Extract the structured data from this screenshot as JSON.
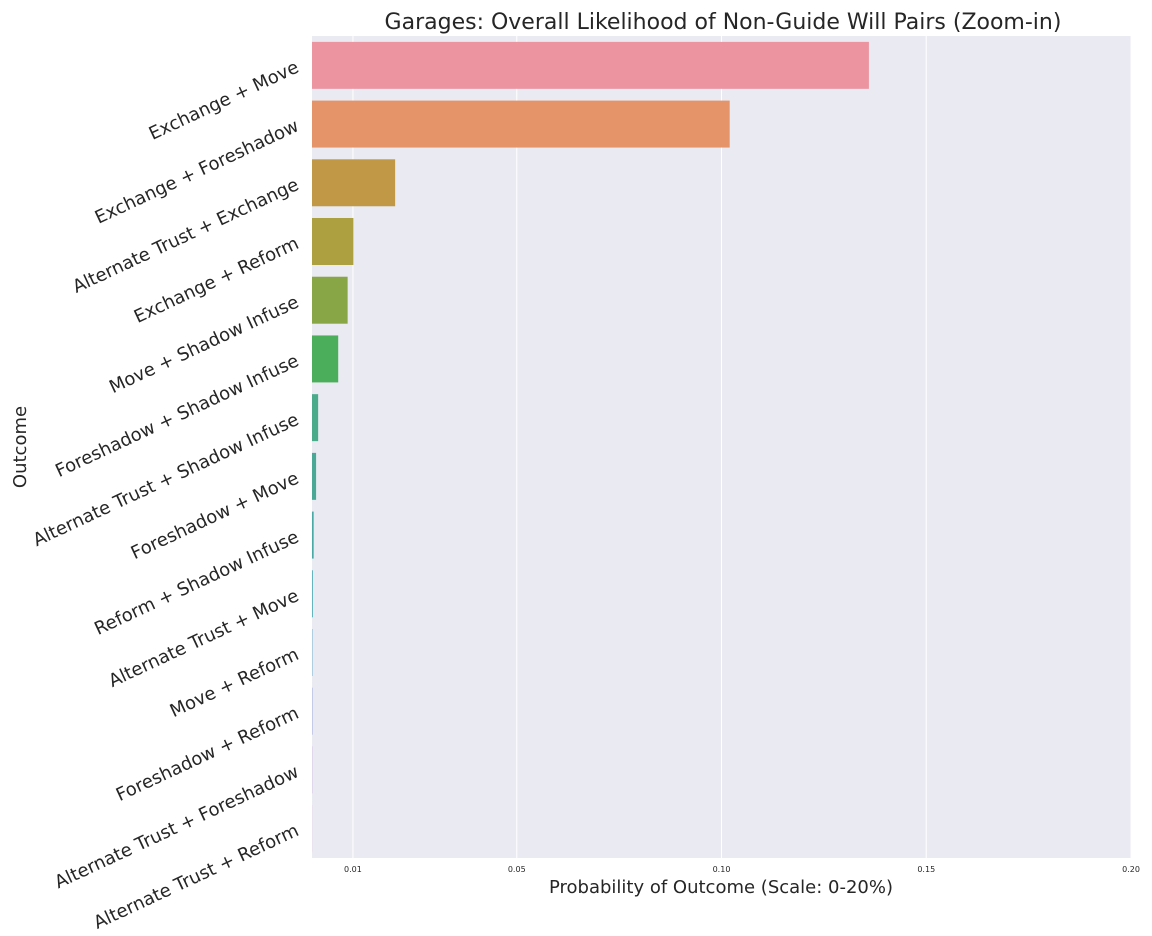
{
  "chart_data": {
    "type": "bar",
    "orientation": "horizontal",
    "title": "Garages: Overall Likelihood of Non-Guide Will Pairs (Zoom-in)",
    "xlabel": "Probability of Outcome (Scale: 0-20%)",
    "ylabel": "Outcome",
    "xlim": [
      0,
      0.2
    ],
    "xticks": [
      0.01,
      0.05,
      0.1,
      0.15,
      0.2
    ],
    "xtick_labels": [
      "0.01",
      "0.05",
      "0.10",
      "0.15",
      "0.20"
    ],
    "grid": true,
    "categories": [
      "Exchange + Move",
      "Exchange + Foreshadow",
      "Alternate Trust + Exchange",
      "Exchange + Reform",
      "Move + Shadow Infuse",
      "Foreshadow + Shadow Infuse",
      "Alternate Trust + Shadow Infuse",
      "Foreshadow + Move",
      "Reform + Shadow Infuse",
      "Alternate Trust + Move",
      "Move + Reform",
      "Foreshadow + Reform",
      "Alternate Trust + Foreshadow",
      "Alternate Trust + Reform"
    ],
    "values": [
      0.136,
      0.102,
      0.0203,
      0.0101,
      0.0087,
      0.0064,
      0.0015,
      0.001,
      0.0004,
      0.0002,
      0.0001,
      0.0001,
      5e-05,
      2e-05
    ],
    "colors": [
      "#ec95a1",
      "#e59469",
      "#c19846",
      "#aca040",
      "#89a646",
      "#4bae5a",
      "#4aab8b",
      "#4aa897",
      "#48a9a5",
      "#47a9b4",
      "#5ca5cb",
      "#8f9bd8",
      "#b98ed5",
      "#e08ccb"
    ]
  },
  "plot_style": {
    "background": "#eaeaf2",
    "grid_color": "#ffffff"
  }
}
